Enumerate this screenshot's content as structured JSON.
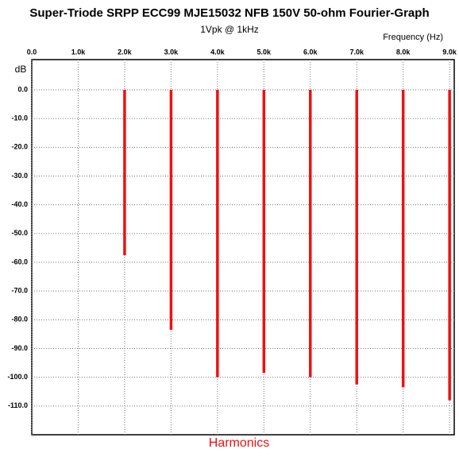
{
  "chart_data": {
    "type": "stem",
    "title": "Super-Triode SRPP ECC99 MJE15032 NFB 150V 50-ohm Fourier-Graph",
    "subtitle": "1Vpk @ 1kHz",
    "x_label": "Frequency  (Hz)",
    "y_label": "dB",
    "footer": "Harmonics",
    "color": "#ee1111",
    "grid": true,
    "x": [
      2000,
      3000,
      4000,
      5000,
      6000,
      7000,
      8000,
      9000
    ],
    "values": [
      -57.5,
      -83.5,
      -100,
      -98.5,
      -100,
      -102.5,
      -103.5,
      -108
    ],
    "xlim": [
      0,
      9100
    ],
    "xticks": [
      {
        "value": 0,
        "label": "0.0"
      },
      {
        "value": 1000,
        "label": "1.0k"
      },
      {
        "value": 2000,
        "label": "2.0k"
      },
      {
        "value": 3000,
        "label": "3.0k"
      },
      {
        "value": 4000,
        "label": "4.0k"
      },
      {
        "value": 5000,
        "label": "5.0k"
      },
      {
        "value": 6000,
        "label": "6.0k"
      },
      {
        "value": 7000,
        "label": "7.0k"
      },
      {
        "value": 8000,
        "label": "8.0k"
      },
      {
        "value": 9000,
        "label": "9.0k"
      }
    ],
    "ylim": [
      -120,
      10.5
    ],
    "yticks": [
      {
        "value": 0,
        "label": "0.0"
      },
      {
        "value": -10,
        "label": "-10.0"
      },
      {
        "value": -20,
        "label": "-20.0"
      },
      {
        "value": -30,
        "label": "-30.0"
      },
      {
        "value": -40,
        "label": "-40.0"
      },
      {
        "value": -50,
        "label": "-50.0"
      },
      {
        "value": -60,
        "label": "-60.0"
      },
      {
        "value": -70,
        "label": "-70.0"
      },
      {
        "value": -80,
        "label": "-80.0"
      },
      {
        "value": -90,
        "label": "-90.0"
      },
      {
        "value": -100,
        "label": "-100.0"
      },
      {
        "value": -110,
        "label": "-110.0"
      }
    ]
  }
}
